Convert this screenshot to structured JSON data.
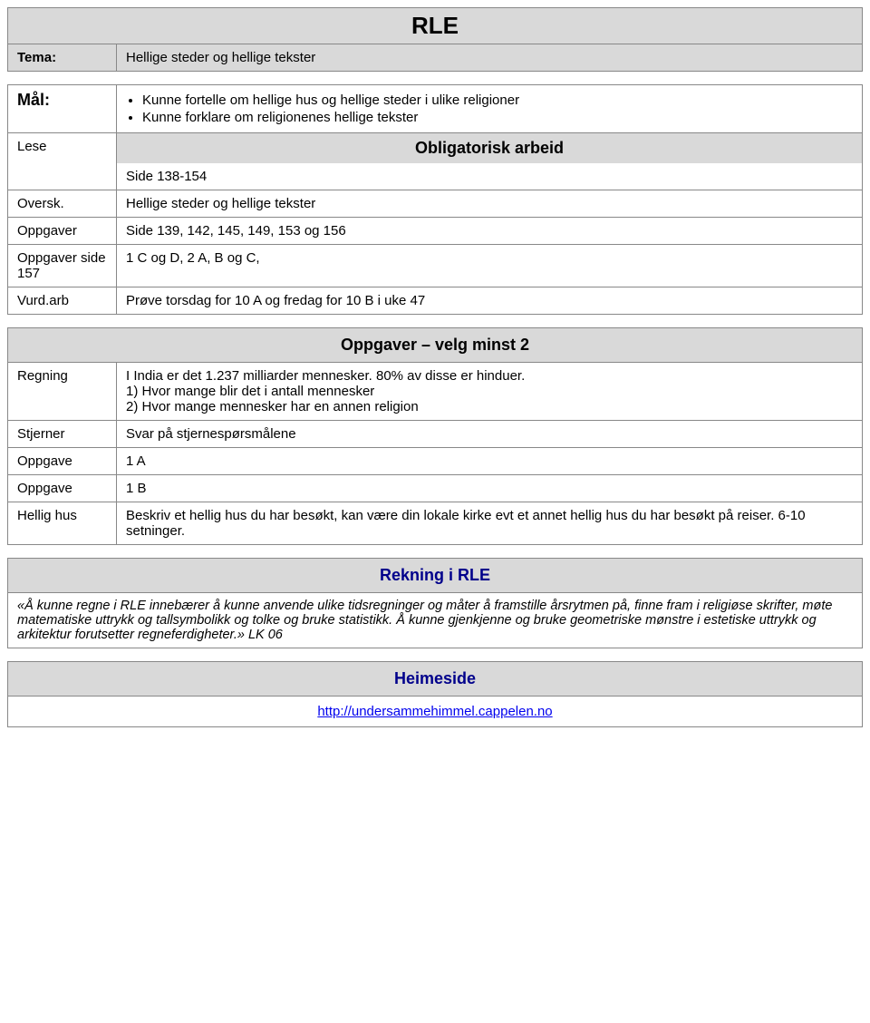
{
  "colors": {
    "header_bg": "#d9d9d9",
    "border": "#888888",
    "text": "#000000",
    "link": "#0000ee",
    "dark_blue": "#00008b"
  },
  "title": "RLE",
  "tema": {
    "label": "Tema:",
    "value": "Hellige steder og hellige tekster"
  },
  "mal": {
    "label": "Mål:",
    "bullets": [
      "Kunne fortelle om hellige hus og hellige steder i ulike religioner",
      "Kunne forklare om religionenes hellige tekster"
    ]
  },
  "oblig_header": "Obligatorisk arbeid",
  "rows1": [
    {
      "label": "Lese",
      "value": "Side 138-154"
    },
    {
      "label": "Oversk.",
      "value": "Hellige steder og hellige tekster"
    },
    {
      "label": "Oppgaver",
      "value": "Side 139, 142, 145, 149, 153 og 156"
    },
    {
      "label": "Oppgaver side 157",
      "value": "1 C og D, 2 A, B og C,"
    },
    {
      "label": "Vurd.arb",
      "value": "Prøve torsdag for 10 A og fredag for 10 B i uke 47"
    }
  ],
  "oppgaver_header": "Oppgaver – velg minst 2",
  "rows2": [
    {
      "label": "Regning",
      "value": "I India er det 1.237 milliarder mennesker. 80% av disse er hinduer.\n1) Hvor mange blir det i antall mennesker\n2) Hvor mange mennesker har en annen religion"
    },
    {
      "label": "Stjerner",
      "value": "Svar på stjernespørsmålene"
    },
    {
      "label": "Oppgave",
      "value": "1 A"
    },
    {
      "label": "Oppgave",
      "value": "1 B"
    },
    {
      "label": "Hellig hus",
      "value": "Beskriv et hellig hus du har besøkt, kan være din lokale kirke evt et annet hellig hus du har besøkt på reiser. 6-10 setninger."
    }
  ],
  "rekning": {
    "header": "Rekning i RLE",
    "text": "«Å kunne regne i RLE innebærer å kunne anvende ulike tidsregninger og måter å framstille årsrytmen på, finne fram i religiøse skrifter, møte matematiske uttrykk og tallsymbolikk og tolke og bruke statistikk. Å kunne gjenkjenne og bruke geometriske mønstre i estetiske uttrykk og arkitektur forutsetter regneferdigheter.» LK 06"
  },
  "heimeside": {
    "header": "Heimeside",
    "link": "http://undersammehimmel.cappelen.no"
  }
}
